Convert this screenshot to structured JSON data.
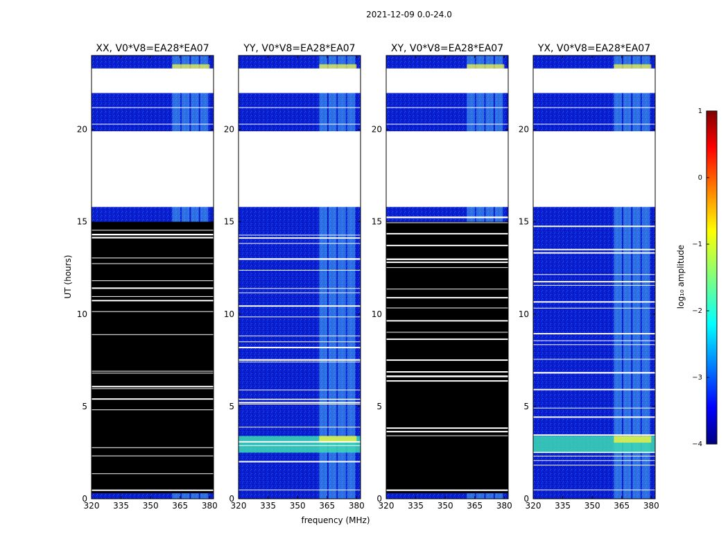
{
  "chart_data": {
    "type": "heatmap",
    "title": "2021-12-09 0.0-24.0",
    "xlabel": "frequency (MHz)",
    "ylabel": "UT (hours)",
    "xlim": [
      320,
      382
    ],
    "ylim": [
      0,
      24
    ],
    "x_ticks": [
      320,
      335,
      350,
      365,
      380
    ],
    "x_tick_labels": [
      "320",
      "335",
      "350",
      "365",
      "380"
    ],
    "y_ticks": [
      0,
      5,
      10,
      15,
      20
    ],
    "y_tick_labels": [
      "0",
      "5",
      "10",
      "15",
      "20"
    ],
    "colormap": "jet",
    "colors": {
      "jet_low": "#00007f",
      "jet_high": "#7f0000",
      "flagged": "#000000",
      "missing": "#ffffff"
    },
    "colorbar": {
      "label": "log₁₀ amplitude",
      "range": [
        -4,
        1
      ],
      "ticks": [
        1,
        0,
        -1,
        -2,
        -3,
        -4
      ],
      "tick_labels": [
        "1",
        "0",
        "−1",
        "−2",
        "−3",
        "−4"
      ]
    },
    "panels": [
      {
        "name": "XX, V0*V8=EA28*EA07",
        "flagged_hours": [
          [
            0.3,
            15.0
          ]
        ]
      },
      {
        "name": "YY, V0*V8=EA28*EA07",
        "flagged_hours": []
      },
      {
        "name": "XY, V0*V8=EA28*EA07",
        "flagged_hours": [
          [
            0.3,
            15.0
          ]
        ]
      },
      {
        "name": "YX, V0*V8=EA28*EA07",
        "flagged_hours": []
      }
    ],
    "no_data_hours": [
      [
        15.8,
        19.9
      ],
      [
        22.0,
        23.3
      ]
    ],
    "rfi_band_mhz": [
      361,
      380
    ],
    "bright_hours": [
      [
        2.5,
        3.4
      ]
    ]
  }
}
